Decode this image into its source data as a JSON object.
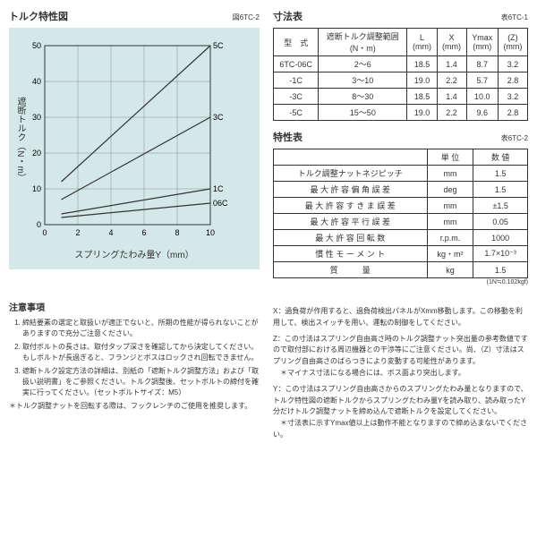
{
  "chart": {
    "title": "トルク特性図",
    "ref": "図6TC-2",
    "ylabel": "遮断トルク（N・m）",
    "xlabel": "スプリングたわみ量Y（mm）",
    "bg": "#d4e8e8",
    "grid_color": "#888",
    "xlim": [
      0,
      10
    ],
    "ylim": [
      0,
      50
    ],
    "xticks": [
      0,
      2,
      4,
      6,
      8,
      10
    ],
    "yticks": [
      0,
      10,
      20,
      30,
      40,
      50
    ],
    "series": [
      {
        "name": "5C",
        "pts": [
          [
            1,
            12
          ],
          [
            10,
            50
          ]
        ]
      },
      {
        "name": "3C",
        "pts": [
          [
            1,
            7
          ],
          [
            10,
            30
          ]
        ]
      },
      {
        "name": "1C",
        "pts": [
          [
            1,
            3
          ],
          [
            10,
            10
          ]
        ]
      },
      {
        "name": "06C",
        "pts": [
          [
            1,
            2
          ],
          [
            10,
            6
          ]
        ]
      }
    ],
    "line_color": "#333",
    "label_fontsize": 9
  },
  "dim_table": {
    "title": "寸法表",
    "ref": "表6TC-1",
    "headers": [
      "型　式",
      "遮断トルク調整範囲\n(N・m)",
      "L\n(mm)",
      "X\n(mm)",
      "Ymax\n(mm)",
      "(Z)\n(mm)"
    ],
    "rows": [
      [
        "6TC-06C",
        "2～6",
        "18.5",
        "1.4",
        "8.7",
        "3.2"
      ],
      [
        "-1C",
        "3～10",
        "19.0",
        "2.2",
        "5.7",
        "2.8"
      ],
      [
        "-3C",
        "8～30",
        "18.5",
        "1.4",
        "10.0",
        "3.2"
      ],
      [
        "-5C",
        "15～50",
        "19.0",
        "2.2",
        "9.6",
        "2.8"
      ]
    ]
  },
  "spec_table": {
    "title": "特性表",
    "ref": "表6TC-2",
    "headers": [
      "",
      "単 位",
      "数 値"
    ],
    "rows": [
      [
        "トルク調整ナットネジピッチ",
        "mm",
        "1.5"
      ],
      [
        "最 大 許 容 偏 角 誤 差",
        "deg",
        "1.5"
      ],
      [
        "最 大 許 容 す き ま 誤 差",
        "mm",
        "±1.5"
      ],
      [
        "最 大 許 容 平 行 誤 差",
        "mm",
        "0.05"
      ],
      [
        "最 大 許 容 回 転 数",
        "r.p.m.",
        "1000"
      ],
      [
        "慣 性 モ ー メ ン ト",
        "kg・m²",
        "1.7×10⁻³"
      ],
      [
        "質　　　量",
        "kg",
        "1.5"
      ]
    ],
    "footnote": "(1N≒0.102kgf)"
  },
  "cautions": {
    "title": "注意事項",
    "items": [
      "締結要素の選定と取扱いが適正でないと、所期の性能が得られないことがありますので充分ご注意ください。",
      "取付ボルトの長さは、取付タップ深さを確認してから決定してください。もしボルトが長過ぎると、フランジとボスはロックされ回転できません。",
      "遮断トルク設定方法の詳細は、別紙の「遮断トルク調整方法」および「取扱い説明書」をご参照ください。トルク調整後、セットボルトの締付を確実に行ってください。（セットボルトサイズ：M5）"
    ],
    "asterisk": "＊トルク調整ナットを回転する際は、フックレンチのご使用を推奨します。"
  },
  "right_notes": {
    "X": "過負荷が作用すると、過負荷検出パネルがXmm移動します。この移動を利用して、検出スイッチを用い、運転の制御をしてください。",
    "Z": "この寸法はスプリング自由高さ時のトルク調整ナット突出量の参考数値ですので取付部における周辺機器との干渉等にご注意ください。尚、（Z）寸法はスプリング自由高さのばらつきにより変動する可能性があります。\n＊マイナス寸法になる場合には、ボス面より突出します。",
    "Y": "この寸法はスプリング自由高さからのスプリングたわみ量となりますので、トルク特性図の遮断トルクからスプリングたわみ量Yを読み取り、読み取ったY分だけトルク調整ナットを締め込んで遮断トルクを設定してください。\n＊寸法表に示すYmax値以上は動作不能となりますので締め込まないでください。"
  }
}
